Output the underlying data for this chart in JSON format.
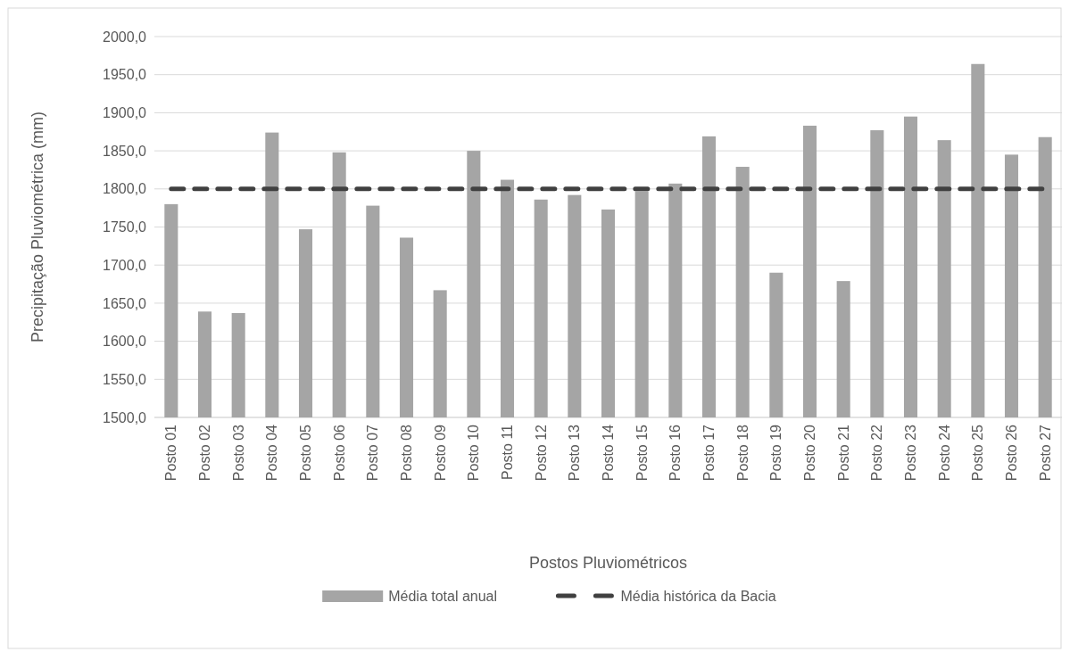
{
  "chart_data": {
    "type": "bar",
    "xlabel": "Postos Pluviométricos",
    "ylabel": "Precipitação Pluviométrica (mm)",
    "categories": [
      "Posto 01",
      "Posto 02",
      "Posto 03",
      "Posto 04",
      "Posto 05",
      "Posto 06",
      "Posto 07",
      "Posto 08",
      "Posto 09",
      "Posto 10",
      "Posto 11",
      "Posto 12",
      "Posto 13",
      "Posto 14",
      "Posto 15",
      "Posto 16",
      "Posto 17",
      "Posto 18",
      "Posto 19",
      "Posto 20",
      "Posto 21",
      "Posto 22",
      "Posto 23",
      "Posto 24",
      "Posto 25",
      "Posto 26",
      "Posto 27"
    ],
    "series": [
      {
        "name": "Média total anual",
        "color": "#a5a5a5",
        "values": [
          1780,
          1639,
          1637,
          1874,
          1747,
          1848,
          1778,
          1736,
          1667,
          1850,
          1812,
          1786,
          1792,
          1773,
          1797,
          1807,
          1869,
          1829,
          1690,
          1883,
          1679,
          1877,
          1895,
          1864,
          1964,
          1845,
          1868
        ]
      },
      {
        "name": "Média histórica da Bacia",
        "type": "line",
        "color": "#404040",
        "line_style": "dashed",
        "values": [
          1800,
          1800,
          1800,
          1800,
          1800,
          1800,
          1800,
          1800,
          1800,
          1800,
          1800,
          1800,
          1800,
          1800,
          1800,
          1800,
          1800,
          1800,
          1800,
          1800,
          1800,
          1800,
          1800,
          1800,
          1800,
          1800,
          1800
        ]
      }
    ],
    "ylim": [
      1500,
      2000
    ],
    "yticks": [
      {
        "value": 1500,
        "label": "1500,0"
      },
      {
        "value": 1550,
        "label": "1550,0"
      },
      {
        "value": 1600,
        "label": "1600,0"
      },
      {
        "value": 1650,
        "label": "1650,0"
      },
      {
        "value": 1700,
        "label": "1700,0"
      },
      {
        "value": 1750,
        "label": "1750,0"
      },
      {
        "value": 1800,
        "label": "1800,0"
      },
      {
        "value": 1850,
        "label": "1850,0"
      },
      {
        "value": 1900,
        "label": "1900,0"
      },
      {
        "value": 1950,
        "label": "1950,0"
      },
      {
        "value": 2000,
        "label": "2000,0"
      }
    ],
    "grid": "y",
    "legend": "bottom"
  }
}
